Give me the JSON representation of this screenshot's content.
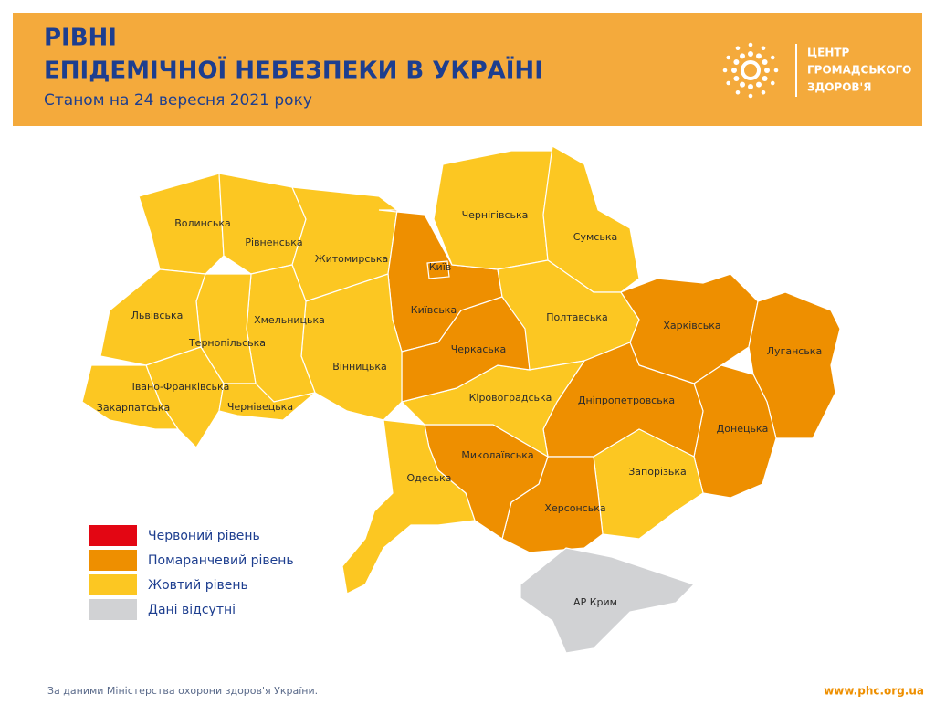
{
  "header": {
    "title_lines": [
      "РІВНІ",
      "ЕПІДЕМІЧНОЇ НЕБЕЗПЕКИ В УКРАЇНІ"
    ],
    "subtitle": "Станом на 24 вересня 2021 року",
    "logo_lines": [
      "ЦЕНТР",
      "ГРОМАДСЬКОГО",
      "ЗДОРОВ'Я"
    ]
  },
  "regions": [
    {
      "label": "Волинська",
      "color": "#fcc722"
    },
    {
      "label": "Рівненська",
      "color": "#fcc722"
    },
    {
      "label": "Житомирська",
      "color": "#fcc722"
    },
    {
      "label": "Київська",
      "color": "#ee8f00"
    },
    {
      "label": "Київ",
      "color": "#ee8f00"
    },
    {
      "label": "Чернігівська",
      "color": "#fcc722"
    },
    {
      "label": "Сумська",
      "color": "#fcc722"
    },
    {
      "label": "Полтавська",
      "color": "#fcc722"
    },
    {
      "label": "Харківська",
      "color": "#ee8f00"
    },
    {
      "label": "Луганська",
      "color": "#ee8f00"
    },
    {
      "label": "Донецька",
      "color": "#ee8f00"
    },
    {
      "label": "Дніпропетровська",
      "color": "#ee8f00"
    },
    {
      "label": "Запорізька",
      "color": "#fcc722"
    },
    {
      "label": "Херсонська",
      "color": "#ee8f00"
    },
    {
      "label": "Миколаївська",
      "color": "#ee8f00"
    },
    {
      "label": "Кіровоградська",
      "color": "#fcc722"
    },
    {
      "label": "Черкаська",
      "color": "#ee8f00"
    },
    {
      "label": "Вінницька",
      "color": "#fcc722"
    },
    {
      "label": "Одеська",
      "color": "#fcc722"
    },
    {
      "label": "Хмельницька",
      "color": "#fcc722"
    },
    {
      "label": "Тернопільська",
      "color": "#fcc722"
    },
    {
      "label": "Львівська",
      "color": "#fcc722"
    },
    {
      "label": "Івано-Франківська",
      "color": "#fcc722"
    },
    {
      "label": "Чернівецька",
      "color": "#fcc722"
    },
    {
      "label": "Закарпатська",
      "color": "#fcc722"
    },
    {
      "label": "АР Крим",
      "color": "#d1d2d4"
    }
  ],
  "legend": [
    {
      "label": "Червоний рівень",
      "color": "#e30613"
    },
    {
      "label": "Помаранчевий рівень",
      "color": "#ee8f00"
    },
    {
      "label": "Жовтий рівень",
      "color": "#fcc722"
    },
    {
      "label": "Дані відсутні",
      "color": "#d1d2d4"
    }
  ],
  "footer": {
    "source": "За даними Міністерства охорони здоров'я України.",
    "url": "www.phc.org.ua"
  }
}
